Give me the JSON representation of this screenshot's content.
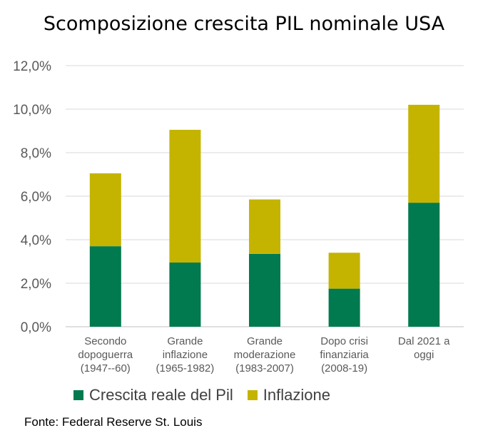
{
  "colors": {
    "real": "#007A4E",
    "inflation": "#C4B400",
    "grid": "#d9d9d9"
  },
  "legend": {
    "real": "Crescita reale del Pil",
    "inflation": "Inflazione"
  },
  "source": "Fonte: Federal Reserve St. Louis",
  "chart_data": {
    "type": "bar",
    "stacked": true,
    "title": "Scomposizione crescita PIL nominale USA",
    "categories": [
      [
        "Secondo",
        "dopoguerra",
        "(1947--60)"
      ],
      [
        "Grande",
        "inflazione",
        "(1965-1982)"
      ],
      [
        "Grande",
        "moderazione",
        "(1983-2007)"
      ],
      [
        "Dopo crisi",
        "finanziaria",
        "(2008-19)"
      ],
      [
        "Dal 2021 a",
        "oggi"
      ]
    ],
    "series": [
      {
        "name": "Crescita reale del Pil",
        "values": [
          3.7,
          2.95,
          3.35,
          1.75,
          5.7
        ]
      },
      {
        "name": "Inflazione",
        "values": [
          3.35,
          6.1,
          2.5,
          1.65,
          4.5
        ]
      }
    ],
    "ylim": [
      0,
      12
    ],
    "yticks": [
      "0,0%",
      "2,0%",
      "4,0%",
      "6,0%",
      "8,0%",
      "10,0%",
      "12,0%"
    ],
    "grid": true,
    "legend_position": "bottom"
  }
}
